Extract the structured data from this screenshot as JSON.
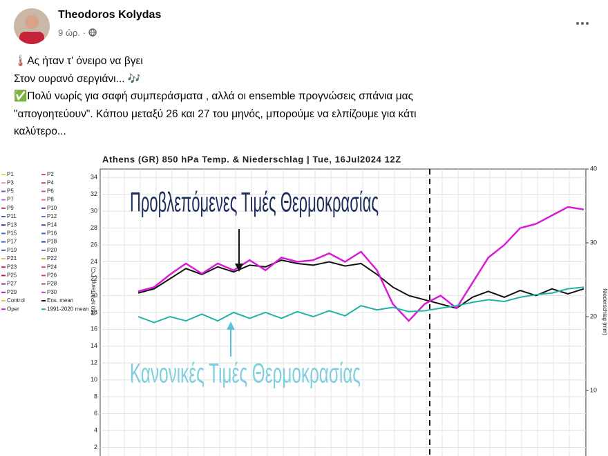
{
  "post": {
    "author": "Theodoros Kolydas",
    "time": "9 ώρ. ·",
    "text": [
      "🌡️Ας ήταν τ' όνειρο να βγει",
      "Στον ουρανό σεργιάνι... 🎶",
      "✅Πολύ νωρίς για σαφή συμπεράσματα , αλλά οι ensemble προγνώσεις σπάνια μας",
      "\"απογοητεύουν\". Κάπου μεταξύ 26 και 27 του μηνός,  μπορούμε να ελπίζουμε για κάτι",
      "καλύτερο..."
    ]
  },
  "chart_data": {
    "type": "line",
    "title": "Athens  (GR)  850 hPa Temp. & Niederschlag | Tue, 16Jul2024 12Z",
    "y_label": "850 hPa Temp. (°C)",
    "y2_label": "Niederschlag (mm)",
    "annotations": [
      "Προβλεπόμενες Τιμές Θερμοκρασίας",
      "Κανονικές Τιμές Θερμοκρασίας"
    ],
    "ylim": [
      0,
      35
    ],
    "yticks": [
      2,
      4,
      6,
      8,
      10,
      12,
      14,
      16,
      18,
      20,
      22,
      24,
      26,
      28,
      30,
      32,
      34
    ],
    "y2lim": [
      0,
      40
    ],
    "y2ticks": [
      10,
      20,
      30,
      40
    ],
    "grid": true,
    "legend": [
      {
        "name": "P1",
        "color": "#e8d84a"
      },
      {
        "name": "P2",
        "color": "#d44fa0"
      },
      {
        "name": "P3",
        "color": "#e090d0"
      },
      {
        "name": "P4",
        "color": "#c04080"
      },
      {
        "name": "P5",
        "color": "#7a5cc8"
      },
      {
        "name": "P6",
        "color": "#d050c0"
      },
      {
        "name": "P7",
        "color": "#b070e0"
      },
      {
        "name": "P8",
        "color": "#e070a0"
      },
      {
        "name": "P9",
        "color": "#c03070"
      },
      {
        "name": "P10",
        "color": "#6040a0"
      },
      {
        "name": "P11",
        "color": "#4060c0"
      },
      {
        "name": "P12",
        "color": "#5080e0"
      },
      {
        "name": "P13",
        "color": "#2040a0"
      },
      {
        "name": "P14",
        "color": "#3050b0"
      },
      {
        "name": "P15",
        "color": "#4a6ad0"
      },
      {
        "name": "P16",
        "color": "#5060b8"
      },
      {
        "name": "P17",
        "color": "#3070c0"
      },
      {
        "name": "P18",
        "color": "#2050a8"
      },
      {
        "name": "P19",
        "color": "#3a60b0"
      },
      {
        "name": "P20",
        "color": "#5a70c8"
      },
      {
        "name": "P21",
        "color": "#e0c040"
      },
      {
        "name": "P22",
        "color": "#d0b030"
      },
      {
        "name": "P23",
        "color": "#c03040"
      },
      {
        "name": "P24",
        "color": "#e05060"
      },
      {
        "name": "P25",
        "color": "#b02050"
      },
      {
        "name": "P26",
        "color": "#d04080"
      },
      {
        "name": "P27",
        "color": "#a03090"
      },
      {
        "name": "P28",
        "color": "#c040a0"
      },
      {
        "name": "P29",
        "color": "#9030a0"
      },
      {
        "name": "P30",
        "color": "#b050c0"
      },
      {
        "name": "Control",
        "color": "#e8d020"
      }
    ],
    "series": [
      {
        "name": "Ens. mean",
        "color": "#111111",
        "values": [
          20.3,
          20.8,
          22,
          23.2,
          22.5,
          23.4,
          22.8,
          23.6,
          23.4,
          24.2,
          23.8,
          23.6,
          24,
          23.5,
          23.8,
          22.5,
          21,
          20,
          19.5,
          19,
          18.5,
          19.8,
          20.5,
          19.8,
          20.6,
          20,
          20.8,
          20.2,
          20.8
        ]
      },
      {
        "name": "Oper",
        "color": "#d81bd8",
        "values": [
          20.5,
          21,
          22.5,
          23.8,
          22.6,
          23.8,
          23,
          24.2,
          23,
          24.5,
          24,
          24.2,
          25,
          24,
          25.2,
          23,
          19,
          17,
          19,
          20,
          18.5,
          21.5,
          24.5,
          26,
          28,
          28.5,
          29.5,
          30.5,
          30.2
        ]
      },
      {
        "name": "1991-2020 mean",
        "color": "#1fb3a6",
        "values": [
          17.5,
          16.8,
          17.5,
          17,
          17.8,
          17,
          18,
          17.3,
          18,
          17.3,
          18.1,
          17.5,
          18.2,
          17.6,
          18.8,
          18.3,
          18.6,
          18.1,
          18.2,
          18.5,
          18.8,
          19.2,
          19.5,
          19.3,
          19.8,
          20.1,
          20.3,
          20.8,
          21
        ]
      }
    ]
  }
}
